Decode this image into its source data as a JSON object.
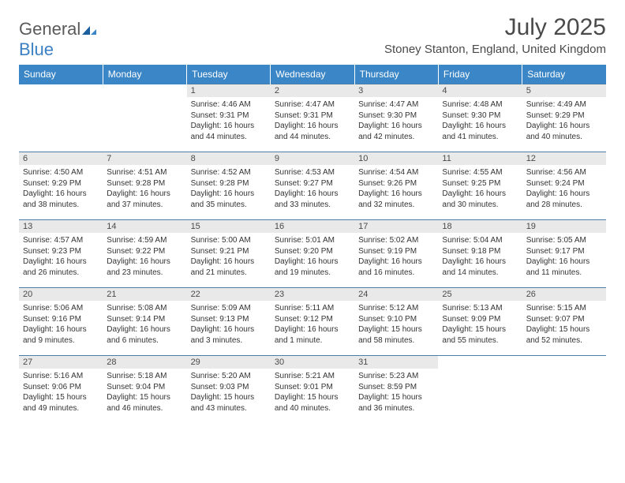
{
  "logo": {
    "part1": "General",
    "part2": "Blue"
  },
  "title": "July 2025",
  "location": "Stoney Stanton, England, United Kingdom",
  "colors": {
    "header_bg": "#3b86c7",
    "header_text": "#ffffff",
    "daynum_bg": "#e9e9e9",
    "border": "#4d7ea8",
    "text": "#333333",
    "title_text": "#4a4a4a",
    "logo_gray": "#5a5a5a",
    "logo_blue": "#3b7fc4"
  },
  "daysOfWeek": [
    "Sunday",
    "Monday",
    "Tuesday",
    "Wednesday",
    "Thursday",
    "Friday",
    "Saturday"
  ],
  "weeks": [
    [
      null,
      null,
      {
        "n": "1",
        "sr": "Sunrise: 4:46 AM",
        "ss": "Sunset: 9:31 PM",
        "d1": "Daylight: 16 hours",
        "d2": "and 44 minutes."
      },
      {
        "n": "2",
        "sr": "Sunrise: 4:47 AM",
        "ss": "Sunset: 9:31 PM",
        "d1": "Daylight: 16 hours",
        "d2": "and 44 minutes."
      },
      {
        "n": "3",
        "sr": "Sunrise: 4:47 AM",
        "ss": "Sunset: 9:30 PM",
        "d1": "Daylight: 16 hours",
        "d2": "and 42 minutes."
      },
      {
        "n": "4",
        "sr": "Sunrise: 4:48 AM",
        "ss": "Sunset: 9:30 PM",
        "d1": "Daylight: 16 hours",
        "d2": "and 41 minutes."
      },
      {
        "n": "5",
        "sr": "Sunrise: 4:49 AM",
        "ss": "Sunset: 9:29 PM",
        "d1": "Daylight: 16 hours",
        "d2": "and 40 minutes."
      }
    ],
    [
      {
        "n": "6",
        "sr": "Sunrise: 4:50 AM",
        "ss": "Sunset: 9:29 PM",
        "d1": "Daylight: 16 hours",
        "d2": "and 38 minutes."
      },
      {
        "n": "7",
        "sr": "Sunrise: 4:51 AM",
        "ss": "Sunset: 9:28 PM",
        "d1": "Daylight: 16 hours",
        "d2": "and 37 minutes."
      },
      {
        "n": "8",
        "sr": "Sunrise: 4:52 AM",
        "ss": "Sunset: 9:28 PM",
        "d1": "Daylight: 16 hours",
        "d2": "and 35 minutes."
      },
      {
        "n": "9",
        "sr": "Sunrise: 4:53 AM",
        "ss": "Sunset: 9:27 PM",
        "d1": "Daylight: 16 hours",
        "d2": "and 33 minutes."
      },
      {
        "n": "10",
        "sr": "Sunrise: 4:54 AM",
        "ss": "Sunset: 9:26 PM",
        "d1": "Daylight: 16 hours",
        "d2": "and 32 minutes."
      },
      {
        "n": "11",
        "sr": "Sunrise: 4:55 AM",
        "ss": "Sunset: 9:25 PM",
        "d1": "Daylight: 16 hours",
        "d2": "and 30 minutes."
      },
      {
        "n": "12",
        "sr": "Sunrise: 4:56 AM",
        "ss": "Sunset: 9:24 PM",
        "d1": "Daylight: 16 hours",
        "d2": "and 28 minutes."
      }
    ],
    [
      {
        "n": "13",
        "sr": "Sunrise: 4:57 AM",
        "ss": "Sunset: 9:23 PM",
        "d1": "Daylight: 16 hours",
        "d2": "and 26 minutes."
      },
      {
        "n": "14",
        "sr": "Sunrise: 4:59 AM",
        "ss": "Sunset: 9:22 PM",
        "d1": "Daylight: 16 hours",
        "d2": "and 23 minutes."
      },
      {
        "n": "15",
        "sr": "Sunrise: 5:00 AM",
        "ss": "Sunset: 9:21 PM",
        "d1": "Daylight: 16 hours",
        "d2": "and 21 minutes."
      },
      {
        "n": "16",
        "sr": "Sunrise: 5:01 AM",
        "ss": "Sunset: 9:20 PM",
        "d1": "Daylight: 16 hours",
        "d2": "and 19 minutes."
      },
      {
        "n": "17",
        "sr": "Sunrise: 5:02 AM",
        "ss": "Sunset: 9:19 PM",
        "d1": "Daylight: 16 hours",
        "d2": "and 16 minutes."
      },
      {
        "n": "18",
        "sr": "Sunrise: 5:04 AM",
        "ss": "Sunset: 9:18 PM",
        "d1": "Daylight: 16 hours",
        "d2": "and 14 minutes."
      },
      {
        "n": "19",
        "sr": "Sunrise: 5:05 AM",
        "ss": "Sunset: 9:17 PM",
        "d1": "Daylight: 16 hours",
        "d2": "and 11 minutes."
      }
    ],
    [
      {
        "n": "20",
        "sr": "Sunrise: 5:06 AM",
        "ss": "Sunset: 9:16 PM",
        "d1": "Daylight: 16 hours",
        "d2": "and 9 minutes."
      },
      {
        "n": "21",
        "sr": "Sunrise: 5:08 AM",
        "ss": "Sunset: 9:14 PM",
        "d1": "Daylight: 16 hours",
        "d2": "and 6 minutes."
      },
      {
        "n": "22",
        "sr": "Sunrise: 5:09 AM",
        "ss": "Sunset: 9:13 PM",
        "d1": "Daylight: 16 hours",
        "d2": "and 3 minutes."
      },
      {
        "n": "23",
        "sr": "Sunrise: 5:11 AM",
        "ss": "Sunset: 9:12 PM",
        "d1": "Daylight: 16 hours",
        "d2": "and 1 minute."
      },
      {
        "n": "24",
        "sr": "Sunrise: 5:12 AM",
        "ss": "Sunset: 9:10 PM",
        "d1": "Daylight: 15 hours",
        "d2": "and 58 minutes."
      },
      {
        "n": "25",
        "sr": "Sunrise: 5:13 AM",
        "ss": "Sunset: 9:09 PM",
        "d1": "Daylight: 15 hours",
        "d2": "and 55 minutes."
      },
      {
        "n": "26",
        "sr": "Sunrise: 5:15 AM",
        "ss": "Sunset: 9:07 PM",
        "d1": "Daylight: 15 hours",
        "d2": "and 52 minutes."
      }
    ],
    [
      {
        "n": "27",
        "sr": "Sunrise: 5:16 AM",
        "ss": "Sunset: 9:06 PM",
        "d1": "Daylight: 15 hours",
        "d2": "and 49 minutes."
      },
      {
        "n": "28",
        "sr": "Sunrise: 5:18 AM",
        "ss": "Sunset: 9:04 PM",
        "d1": "Daylight: 15 hours",
        "d2": "and 46 minutes."
      },
      {
        "n": "29",
        "sr": "Sunrise: 5:20 AM",
        "ss": "Sunset: 9:03 PM",
        "d1": "Daylight: 15 hours",
        "d2": "and 43 minutes."
      },
      {
        "n": "30",
        "sr": "Sunrise: 5:21 AM",
        "ss": "Sunset: 9:01 PM",
        "d1": "Daylight: 15 hours",
        "d2": "and 40 minutes."
      },
      {
        "n": "31",
        "sr": "Sunrise: 5:23 AM",
        "ss": "Sunset: 8:59 PM",
        "d1": "Daylight: 15 hours",
        "d2": "and 36 minutes."
      },
      null,
      null
    ]
  ]
}
